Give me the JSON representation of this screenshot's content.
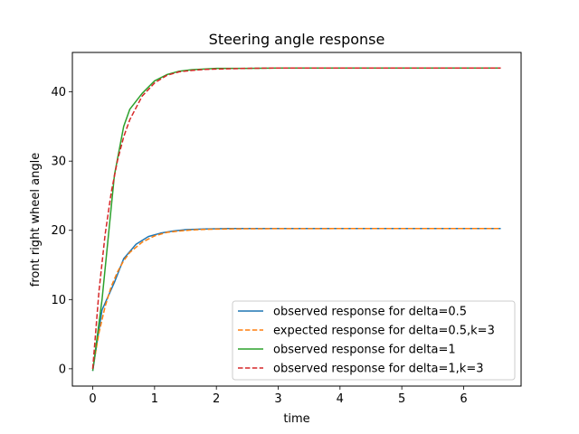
{
  "chart_data": {
    "type": "line",
    "title": "Steering angle response",
    "xlabel": "time",
    "ylabel": "front right wheel angle",
    "xlim": [
      -0.33,
      6.93
    ],
    "ylim": [
      -2.5,
      45.7
    ],
    "xticks": [
      0,
      1,
      2,
      3,
      4,
      5,
      6
    ],
    "yticks": [
      0,
      10,
      20,
      30,
      40
    ],
    "grid": false,
    "legend_position": "lower right",
    "series": [
      {
        "name": "observed response for delta=0.5",
        "color": "#1f77b4",
        "dash": "solid",
        "x": [
          0,
          0.15,
          0.35,
          0.5,
          0.7,
          0.9,
          1.1,
          1.3,
          1.5,
          1.8,
          2.2,
          2.6,
          3.0,
          4.0,
          5.0,
          6.0,
          6.6
        ],
        "y": [
          -0.3,
          8.5,
          12.5,
          15.9,
          18.0,
          19.1,
          19.6,
          19.9,
          20.1,
          20.2,
          20.25,
          20.25,
          20.25,
          20.25,
          20.25,
          20.25,
          20.25
        ]
      },
      {
        "name": "expected response for delta=0.5,k=3",
        "color": "#ff7f0e",
        "dash": "dashed",
        "x": [
          0,
          0.1,
          0.2,
          0.3,
          0.4,
          0.5,
          0.6,
          0.8,
          1.0,
          1.2,
          1.4,
          1.6,
          1.8,
          2.0,
          2.5,
          3.0,
          4.0,
          5.0,
          6.0,
          6.6
        ],
        "y": [
          0,
          5.2,
          9.0,
          11.9,
          14.0,
          15.6,
          16.8,
          18.3,
          19.2,
          19.7,
          19.9,
          20.06,
          20.14,
          20.18,
          20.23,
          20.24,
          20.25,
          20.25,
          20.25,
          20.25
        ]
      },
      {
        "name": "observed response for delta=1",
        "color": "#2ca02c",
        "dash": "solid",
        "x": [
          0,
          0.15,
          0.35,
          0.5,
          0.6,
          0.8,
          1.0,
          1.2,
          1.4,
          1.6,
          1.8,
          2.0,
          2.5,
          3.0,
          4.0,
          5.0,
          6.0,
          6.6
        ],
        "y": [
          -0.3,
          10.0,
          28.0,
          35.0,
          37.5,
          39.8,
          41.6,
          42.5,
          43.0,
          43.2,
          43.3,
          43.4,
          43.4,
          43.45,
          43.45,
          43.45,
          43.45,
          43.45
        ]
      },
      {
        "name": "observed response for delta=1,k=3",
        "color": "#d62728",
        "dash": "dashed",
        "x": [
          0,
          0.1,
          0.2,
          0.3,
          0.4,
          0.5,
          0.6,
          0.8,
          1.0,
          1.2,
          1.4,
          1.6,
          1.8,
          2.0,
          2.5,
          3.0,
          4.0,
          5.0,
          6.0,
          6.6
        ],
        "y": [
          0,
          11.2,
          19.4,
          25.5,
          30.1,
          33.5,
          36.0,
          39.4,
          41.3,
          42.4,
          42.9,
          43.1,
          43.25,
          43.3,
          43.4,
          43.45,
          43.45,
          43.45,
          43.45,
          43.45
        ]
      }
    ]
  }
}
